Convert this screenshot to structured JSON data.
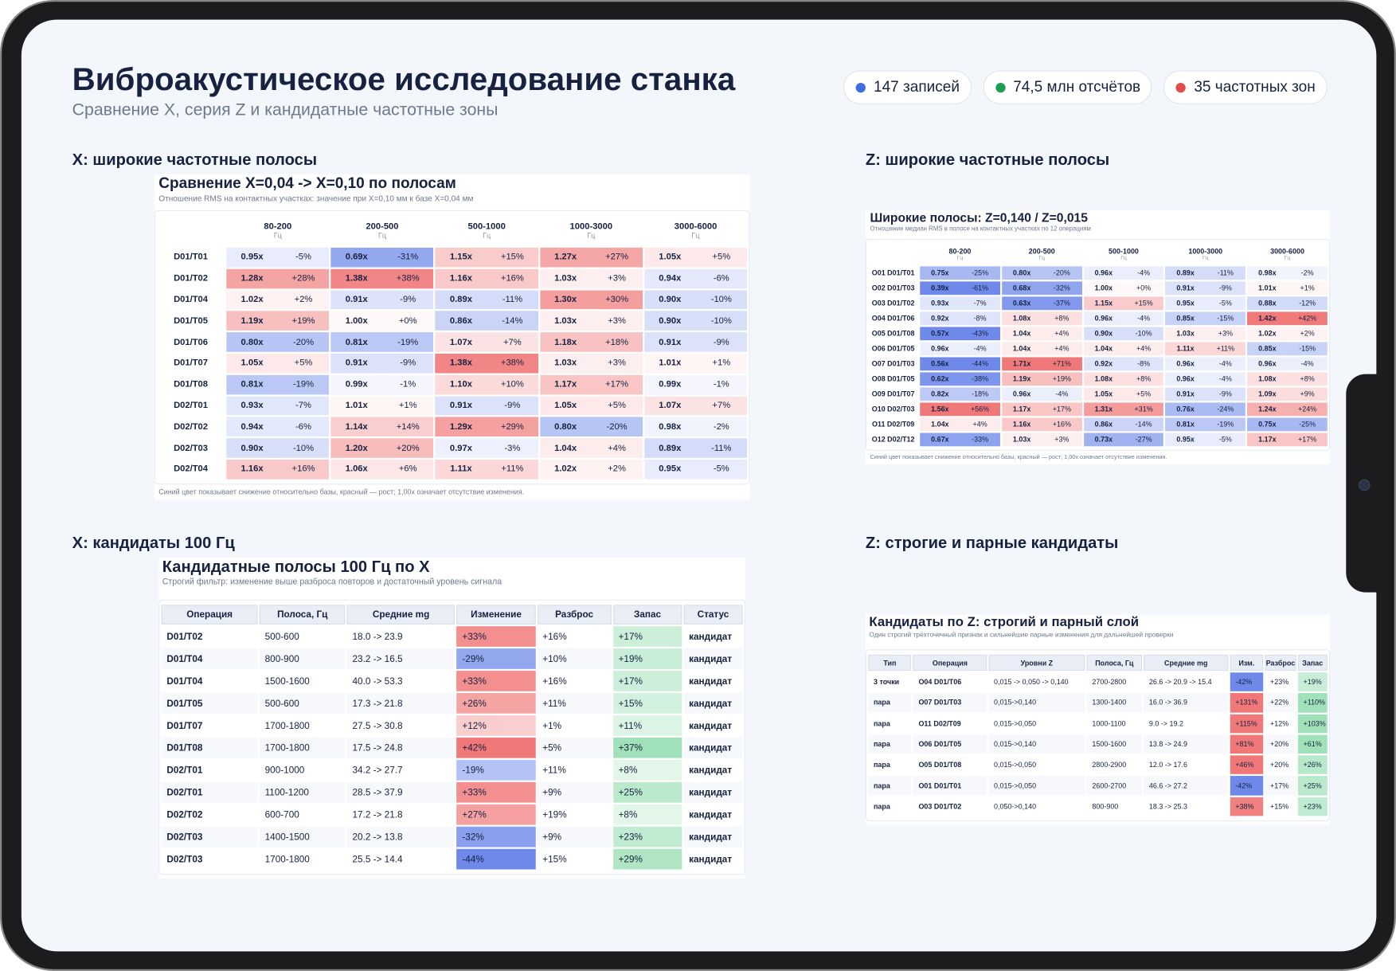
{
  "header": {
    "title": "Виброакустическое исследование станка",
    "subtitle": "Сравнение X, серия Z и кандидатные частотные зоны",
    "badges": [
      {
        "label": "147 записей",
        "color": "#3d6fe3"
      },
      {
        "label": "74,5 млн отсчётов",
        "color": "#1f9d55"
      },
      {
        "label": "35 частотных зон",
        "color": "#e04b4b"
      }
    ]
  },
  "x_bands": {
    "heading": "X: широкие частотные полосы",
    "title": "Сравнение X=0,04 -> X=0,10 по полосам",
    "subtitle": "Отношение RMS на контактных участках: значение при X=0,10 мм к базе X=0,04 мм",
    "columns": [
      "80-200",
      "200-500",
      "500-1000",
      "1000-3000",
      "3000-6000"
    ],
    "unit": "Гц",
    "rows": [
      {
        "label": "D01/T01",
        "cells": [
          [
            "0.95x",
            "-5%"
          ],
          [
            "0.69x",
            "-31%"
          ],
          [
            "1.15x",
            "+15%"
          ],
          [
            "1.27x",
            "+27%"
          ],
          [
            "1.05x",
            "+5%"
          ]
        ]
      },
      {
        "label": "D01/T02",
        "cells": [
          [
            "1.28x",
            "+28%"
          ],
          [
            "1.38x",
            "+38%"
          ],
          [
            "1.16x",
            "+16%"
          ],
          [
            "1.03x",
            "+3%"
          ],
          [
            "0.94x",
            "-6%"
          ]
        ]
      },
      {
        "label": "D01/T04",
        "cells": [
          [
            "1.02x",
            "+2%"
          ],
          [
            "0.91x",
            "-9%"
          ],
          [
            "0.89x",
            "-11%"
          ],
          [
            "1.30x",
            "+30%"
          ],
          [
            "0.90x",
            "-10%"
          ]
        ]
      },
      {
        "label": "D01/T05",
        "cells": [
          [
            "1.19x",
            "+19%"
          ],
          [
            "1.00x",
            "+0%"
          ],
          [
            "0.86x",
            "-14%"
          ],
          [
            "1.03x",
            "+3%"
          ],
          [
            "0.90x",
            "-10%"
          ]
        ]
      },
      {
        "label": "D01/T06",
        "cells": [
          [
            "0.80x",
            "-20%"
          ],
          [
            "0.81x",
            "-19%"
          ],
          [
            "1.07x",
            "+7%"
          ],
          [
            "1.18x",
            "+18%"
          ],
          [
            "0.91x",
            "-9%"
          ]
        ]
      },
      {
        "label": "D01/T07",
        "cells": [
          [
            "1.05x",
            "+5%"
          ],
          [
            "0.91x",
            "-9%"
          ],
          [
            "1.38x",
            "+38%"
          ],
          [
            "1.03x",
            "+3%"
          ],
          [
            "1.01x",
            "+1%"
          ]
        ]
      },
      {
        "label": "D01/T08",
        "cells": [
          [
            "0.81x",
            "-19%"
          ],
          [
            "0.99x",
            "-1%"
          ],
          [
            "1.10x",
            "+10%"
          ],
          [
            "1.17x",
            "+17%"
          ],
          [
            "0.99x",
            "-1%"
          ]
        ]
      },
      {
        "label": "D02/T01",
        "cells": [
          [
            "0.93x",
            "-7%"
          ],
          [
            "1.01x",
            "+1%"
          ],
          [
            "0.91x",
            "-9%"
          ],
          [
            "1.05x",
            "+5%"
          ],
          [
            "1.07x",
            "+7%"
          ]
        ]
      },
      {
        "label": "D02/T02",
        "cells": [
          [
            "0.94x",
            "-6%"
          ],
          [
            "1.14x",
            "+14%"
          ],
          [
            "1.29x",
            "+29%"
          ],
          [
            "0.80x",
            "-20%"
          ],
          [
            "0.98x",
            "-2%"
          ]
        ]
      },
      {
        "label": "D02/T03",
        "cells": [
          [
            "0.90x",
            "-10%"
          ],
          [
            "1.20x",
            "+20%"
          ],
          [
            "0.97x",
            "-3%"
          ],
          [
            "1.04x",
            "+4%"
          ],
          [
            "0.89x",
            "-11%"
          ]
        ]
      },
      {
        "label": "D02/T04",
        "cells": [
          [
            "1.16x",
            "+16%"
          ],
          [
            "1.06x",
            "+6%"
          ],
          [
            "1.11x",
            "+11%"
          ],
          [
            "1.02x",
            "+2%"
          ],
          [
            "0.95x",
            "-5%"
          ]
        ]
      }
    ],
    "note": "Синий цвет показывает снижение относительно базы, красный — рост; 1,00x означает отсутствие изменения."
  },
  "z_bands": {
    "heading": "Z: широкие частотные полосы",
    "title": "Широкие полосы: Z=0,140 / Z=0,015",
    "subtitle": "Отношение медиан RMS в полосе на контактных участках по 12 операциям",
    "columns": [
      "80-200",
      "200-500",
      "500-1000",
      "1000-3000",
      "3000-6000"
    ],
    "unit": "Гц",
    "rows": [
      {
        "label": "O01 D01/T01",
        "cells": [
          [
            "0.75x",
            "-25%"
          ],
          [
            "0.80x",
            "-20%"
          ],
          [
            "0.96x",
            "-4%"
          ],
          [
            "0.89x",
            "-11%"
          ],
          [
            "0.98x",
            "-2%"
          ]
        ]
      },
      {
        "label": "O02 D01/T03",
        "cells": [
          [
            "0.39x",
            "-61%"
          ],
          [
            "0.68x",
            "-32%"
          ],
          [
            "1.00x",
            "+0%"
          ],
          [
            "0.91x",
            "-9%"
          ],
          [
            "1.01x",
            "+1%"
          ]
        ]
      },
      {
        "label": "O03 D01/T02",
        "cells": [
          [
            "0.93x",
            "-7%"
          ],
          [
            "0.63x",
            "-37%"
          ],
          [
            "1.15x",
            "+15%"
          ],
          [
            "0.95x",
            "-5%"
          ],
          [
            "0.88x",
            "-12%"
          ]
        ]
      },
      {
        "label": "O04 D01/T06",
        "cells": [
          [
            "0.92x",
            "-8%"
          ],
          [
            "1.08x",
            "+8%"
          ],
          [
            "0.96x",
            "-4%"
          ],
          [
            "0.85x",
            "-15%"
          ],
          [
            "1.42x",
            "+42%"
          ]
        ]
      },
      {
        "label": "O05 D01/T08",
        "cells": [
          [
            "0.57x",
            "-43%"
          ],
          [
            "1.04x",
            "+4%"
          ],
          [
            "0.90x",
            "-10%"
          ],
          [
            "1.03x",
            "+3%"
          ],
          [
            "1.02x",
            "+2%"
          ]
        ]
      },
      {
        "label": "O06 D01/T05",
        "cells": [
          [
            "0.96x",
            "-4%"
          ],
          [
            "1.04x",
            "+4%"
          ],
          [
            "1.04x",
            "+4%"
          ],
          [
            "1.11x",
            "+11%"
          ],
          [
            "0.85x",
            "-15%"
          ]
        ]
      },
      {
        "label": "O07 D01/T03",
        "cells": [
          [
            "0.56x",
            "-44%"
          ],
          [
            "1.71x",
            "+71%"
          ],
          [
            "0.92x",
            "-8%"
          ],
          [
            "0.96x",
            "-4%"
          ],
          [
            "0.96x",
            "-4%"
          ]
        ]
      },
      {
        "label": "O08 D01/T05",
        "cells": [
          [
            "0.62x",
            "-38%"
          ],
          [
            "1.19x",
            "+19%"
          ],
          [
            "1.08x",
            "+8%"
          ],
          [
            "0.96x",
            "-4%"
          ],
          [
            "1.08x",
            "+8%"
          ]
        ]
      },
      {
        "label": "O09 D01/T07",
        "cells": [
          [
            "0.82x",
            "-18%"
          ],
          [
            "0.96x",
            "-4%"
          ],
          [
            "1.05x",
            "+5%"
          ],
          [
            "0.91x",
            "-9%"
          ],
          [
            "1.09x",
            "+9%"
          ]
        ]
      },
      {
        "label": "O10 D02/T03",
        "cells": [
          [
            "1.56x",
            "+56%"
          ],
          [
            "1.17x",
            "+17%"
          ],
          [
            "1.31x",
            "+31%"
          ],
          [
            "0.76x",
            "-24%"
          ],
          [
            "1.24x",
            "+24%"
          ]
        ]
      },
      {
        "label": "O11 D02/T09",
        "cells": [
          [
            "1.04x",
            "+4%"
          ],
          [
            "1.16x",
            "+16%"
          ],
          [
            "0.86x",
            "-14%"
          ],
          [
            "0.81x",
            "-19%"
          ],
          [
            "0.75x",
            "-25%"
          ]
        ]
      },
      {
        "label": "O12 D02/T12",
        "cells": [
          [
            "0.67x",
            "-33%"
          ],
          [
            "1.03x",
            "+3%"
          ],
          [
            "0.73x",
            "-27%"
          ],
          [
            "0.95x",
            "-5%"
          ],
          [
            "1.17x",
            "+17%"
          ]
        ]
      }
    ],
    "note": "Синий цвет показывает снижение относительно базы, красный — рост; 1,00x означает отсутствие изменения."
  },
  "x_candidates": {
    "heading": "X: кандидаты 100 Гц",
    "title": "Кандидатные полосы 100 Гц по X",
    "subtitle": "Строгий фильтр: изменение выше разброса повторов и достаточный уровень сигнала",
    "columns": [
      "Операция",
      "Полоса, Гц",
      "Средние mg",
      "Изменение",
      "Разброс",
      "Запас",
      "Статус"
    ],
    "rows": [
      [
        "D01/T02",
        "500-600",
        "18.0 -> 23.9",
        "+33%",
        "+16%",
        "+17%",
        "кандидат"
      ],
      [
        "D01/T04",
        "800-900",
        "23.2 -> 16.5",
        "-29%",
        "+10%",
        "+19%",
        "кандидат"
      ],
      [
        "D01/T04",
        "1500-1600",
        "40.0 -> 53.3",
        "+33%",
        "+16%",
        "+17%",
        "кандидат"
      ],
      [
        "D01/T05",
        "500-600",
        "17.3 -> 21.8",
        "+26%",
        "+11%",
        "+15%",
        "кандидат"
      ],
      [
        "D01/T07",
        "1700-1800",
        "27.5 -> 30.8",
        "+12%",
        "+1%",
        "+11%",
        "кандидат"
      ],
      [
        "D01/T08",
        "1700-1800",
        "17.5 -> 24.8",
        "+42%",
        "+5%",
        "+37%",
        "кандидат"
      ],
      [
        "D02/T01",
        "900-1000",
        "34.2 -> 27.7",
        "-19%",
        "+11%",
        "+8%",
        "кандидат"
      ],
      [
        "D02/T01",
        "1100-1200",
        "28.5 -> 37.9",
        "+33%",
        "+9%",
        "+25%",
        "кандидат"
      ],
      [
        "D02/T02",
        "600-700",
        "17.2 -> 21.8",
        "+27%",
        "+19%",
        "+8%",
        "кандидат"
      ],
      [
        "D02/T03",
        "1400-1500",
        "20.2 -> 13.8",
        "-32%",
        "+9%",
        "+23%",
        "кандидат"
      ],
      [
        "D02/T03",
        "1700-1800",
        "25.5 -> 14.4",
        "-44%",
        "+15%",
        "+29%",
        "кандидат"
      ]
    ]
  },
  "z_candidates": {
    "heading": "Z: строгие и парные кандидаты",
    "title": "Кандидаты по Z: строгий и парный слой",
    "subtitle": "Один строгий трёхточечный признак и сильнейшие парные изменения для дальнейшей проверки",
    "columns": [
      "Тип",
      "Операция",
      "Уровни Z",
      "Полоса, Гц",
      "Средние mg",
      "Изм.",
      "Разброс",
      "Запас"
    ],
    "rows": [
      [
        "3 точки",
        "O04 D01/T06",
        "0,015 -> 0,050 -> 0,140",
        "2700-2800",
        "26.6 -> 20.9 -> 15.4",
        "-42%",
        "+23%",
        "+19%"
      ],
      [
        "пара",
        "O07 D01/T03",
        "0,015->0,140",
        "1300-1400",
        "16.0 -> 36.9",
        "+131%",
        "+22%",
        "+110%"
      ],
      [
        "пара",
        "O11 D02/T09",
        "0,015->0,050",
        "1000-1100",
        "9.0 -> 19.2",
        "+115%",
        "+12%",
        "+103%"
      ],
      [
        "пара",
        "O06 D01/T05",
        "0,015->0,140",
        "1500-1600",
        "13.8 -> 24.9",
        "+81%",
        "+20%",
        "+61%"
      ],
      [
        "пара",
        "O05 D01/T08",
        "0,015->0,050",
        "2800-2900",
        "12.0 -> 17.6",
        "+46%",
        "+20%",
        "+26%"
      ],
      [
        "пара",
        "O01 D01/T01",
        "0,015->0,050",
        "2600-2700",
        "46.6 -> 27.2",
        "-42%",
        "+17%",
        "+25%"
      ],
      [
        "пара",
        "O03 D01/T02",
        "0,050->0,140",
        "800-900",
        "18.3 -> 25.3",
        "+38%",
        "+15%",
        "+23%"
      ]
    ]
  }
}
